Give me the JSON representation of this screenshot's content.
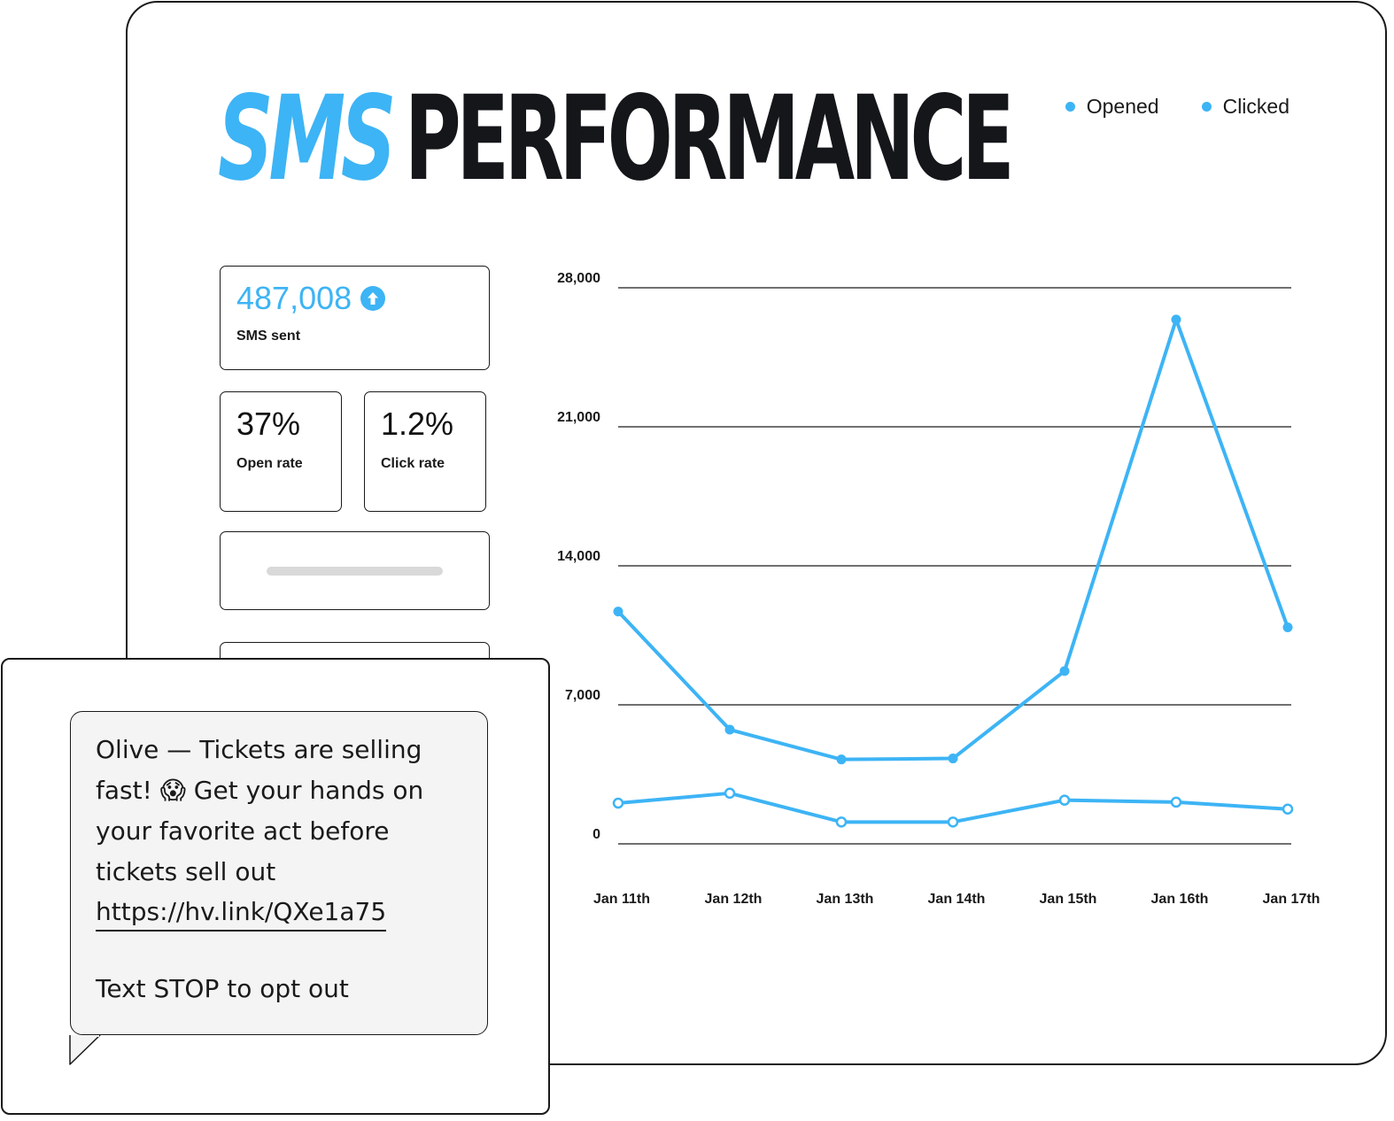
{
  "header": {
    "title_accent": "SMS",
    "title_main": "PERFORMANCE"
  },
  "legend": [
    {
      "label": "Opened",
      "color": "#3db4f5"
    },
    {
      "label": "Clicked",
      "color": "#3db4f5"
    }
  ],
  "stats": {
    "sms_sent": {
      "value": "487,008",
      "label": "SMS sent",
      "icon": "arrow-up-circle-icon"
    },
    "open_rate": {
      "value": "37%",
      "label": "Open rate"
    },
    "click_rate": {
      "value": "1.2%",
      "label": "Click rate"
    }
  },
  "chart_data": {
    "type": "line",
    "x": [
      "Jan 11th",
      "Jan 12th",
      "Jan 13th",
      "Jan 14th",
      "Jan 15th",
      "Jan 16th",
      "Jan 17th"
    ],
    "series": [
      {
        "name": "Opened",
        "values": [
          11700,
          5750,
          4250,
          4300,
          8700,
          26400,
          10900
        ],
        "color": "#3db4f5",
        "marker": "filled"
      },
      {
        "name": "Clicked",
        "values": [
          2050,
          2550,
          1100,
          1100,
          2200,
          2100,
          1750
        ],
        "color": "#3db4f5",
        "marker": "hollow"
      }
    ],
    "y_ticks": [
      "0",
      "7,000",
      "14,000",
      "21,000",
      "28,000"
    ],
    "ylim": [
      0,
      28000
    ],
    "grid": true,
    "legend_position": "top-right"
  },
  "message": {
    "text": "Olive — Tickets are selling fast! 😱 Get your hands on your favorite act before tickets sell out",
    "link": "https://hv.link/QXe1a75",
    "opt_out": "Text STOP to opt out"
  }
}
